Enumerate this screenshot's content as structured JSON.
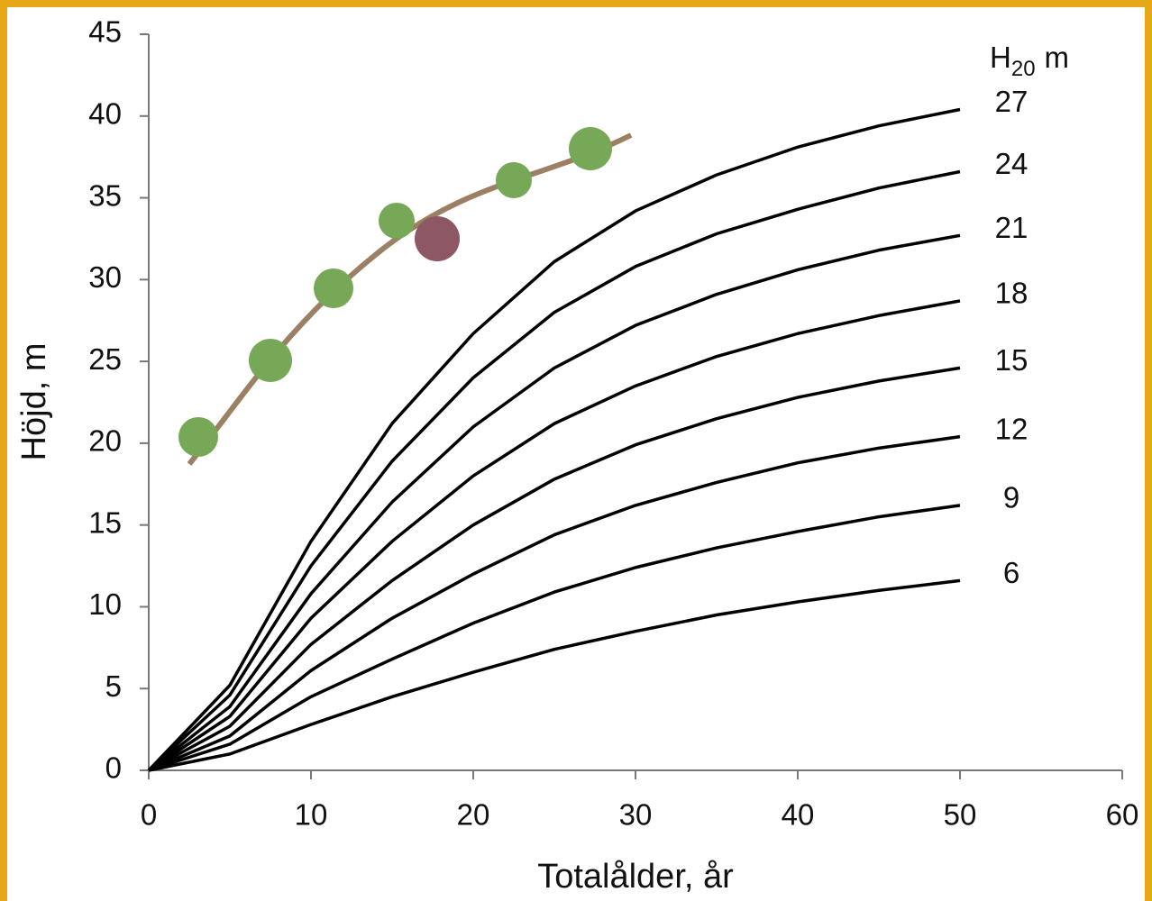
{
  "chart_data": {
    "type": "line",
    "x_label": "Totalålder, år",
    "y_label": "Höjd, m",
    "legend_title": {
      "text": "H",
      "subscript": "20",
      "unit": "m"
    },
    "x": [
      0,
      5,
      10,
      15,
      20,
      25,
      30,
      35,
      40,
      45,
      50
    ],
    "series": [
      {
        "name": "27",
        "color": "#000000",
        "values": [
          0,
          5.2,
          14,
          21.2,
          26.7,
          31.1,
          34.2,
          36.4,
          38.1,
          39.4,
          40.4
        ]
      },
      {
        "name": "24",
        "color": "#000000",
        "values": [
          0,
          4.6,
          12.5,
          18.9,
          24,
          28,
          30.8,
          32.8,
          34.3,
          35.6,
          36.6
        ]
      },
      {
        "name": "21",
        "color": "#000000",
        "values": [
          0,
          3.9,
          10.8,
          16.4,
          21,
          24.6,
          27.2,
          29.1,
          30.6,
          31.8,
          32.7
        ]
      },
      {
        "name": "18",
        "color": "#000000",
        "values": [
          0,
          3.3,
          9.3,
          14,
          18,
          21.2,
          23.5,
          25.3,
          26.7,
          27.8,
          28.7
        ]
      },
      {
        "name": "15",
        "color": "#000000",
        "values": [
          0,
          2.7,
          7.7,
          11.6,
          15,
          17.8,
          19.9,
          21.5,
          22.8,
          23.8,
          24.6
        ]
      },
      {
        "name": "12",
        "color": "#000000",
        "values": [
          0,
          2.1,
          6.1,
          9.3,
          12,
          14.4,
          16.2,
          17.6,
          18.8,
          19.7,
          20.4
        ]
      },
      {
        "name": "9",
        "color": "#000000",
        "values": [
          0,
          1.6,
          4.5,
          6.8,
          9,
          10.9,
          12.4,
          13.6,
          14.6,
          15.5,
          16.2
        ]
      },
      {
        "name": "6",
        "color": "#000000",
        "values": [
          0,
          1.0,
          2.8,
          4.5,
          6,
          7.4,
          8.5,
          9.5,
          10.3,
          11.0,
          11.6
        ]
      }
    ],
    "xlim": [
      0,
      60
    ],
    "xticks": [
      0,
      10,
      20,
      30,
      40,
      50,
      60
    ],
    "ylim": [
      0,
      45
    ],
    "yticks": [
      0,
      5,
      10,
      15,
      20,
      25,
      30,
      35,
      40,
      45
    ]
  }
}
